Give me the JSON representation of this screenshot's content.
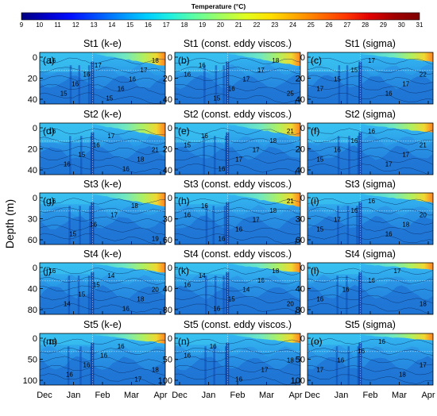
{
  "colorbar": {
    "title": "Temperature (°C)",
    "ticks": [
      "9",
      "10",
      "11",
      "12",
      "13",
      "14",
      "15",
      "16",
      "17",
      "18",
      "19",
      "20",
      "21",
      "22",
      "23",
      "24",
      "25",
      "26",
      "27",
      "28",
      "29",
      "30",
      "31"
    ],
    "colors": [
      "#00007f",
      "#0000c8",
      "#0010ff",
      "#0050ff",
      "#0090ff",
      "#00ccff",
      "#20f0e0",
      "#60ffa0",
      "#a0ff60",
      "#e0ff20",
      "#ffe000",
      "#ffa800",
      "#ff7000",
      "#ff3800",
      "#e00000",
      "#a00000",
      "#7f0000"
    ]
  },
  "y_axis_label": "Depth (m)",
  "months": [
    "Dec",
    "Jan",
    "Feb",
    "Mar",
    "Apr"
  ],
  "rows": [
    {
      "station": "St1",
      "ticks": [
        "0",
        "20",
        "40"
      ],
      "max_depth": 40
    },
    {
      "station": "St2",
      "ticks": [
        "0",
        "20",
        "40"
      ],
      "max_depth": 45
    },
    {
      "station": "St3",
      "ticks": [
        "0",
        "30",
        "60"
      ],
      "max_depth": 60
    },
    {
      "station": "St4",
      "ticks": [
        "0",
        "40",
        "80"
      ],
      "max_depth": 80
    },
    {
      "station": "St5",
      "ticks": [
        "0",
        "50",
        "100"
      ],
      "max_depth": 100
    }
  ],
  "panels": [
    {
      "title": "St1 (k-e)",
      "letter": "(a)",
      "contours": [
        "16",
        "15",
        "16",
        "16",
        "17",
        "15",
        "16",
        "16",
        "17",
        "18"
      ]
    },
    {
      "title": "St1 (const. eddy viscos.)",
      "letter": "(b)",
      "contours": [
        "16",
        "16",
        "15",
        "16",
        "17",
        "17",
        "18",
        "25"
      ]
    },
    {
      "title": "St1 (sigma)",
      "letter": "(c)",
      "contours": [
        "17",
        "15",
        "15",
        "17",
        "16",
        "17",
        "22"
      ]
    },
    {
      "title": "St2 (k-e)",
      "letter": "(d)",
      "contours": [
        "16",
        "16",
        "15",
        "16",
        "17",
        "16",
        "18",
        "21"
      ]
    },
    {
      "title": "St2 (const. eddy viscos.)",
      "letter": "(e)",
      "contours": [
        "15",
        "16",
        "16",
        "17",
        "17",
        "18",
        "21"
      ]
    },
    {
      "title": "St2 (sigma)",
      "letter": "(f)",
      "contours": [
        "15",
        "16",
        "16",
        "16",
        "17",
        "17",
        "21"
      ]
    },
    {
      "title": "St3 (k-e)",
      "letter": "(g)",
      "contours": [
        "16",
        "15",
        "16",
        "17",
        "18",
        "19"
      ]
    },
    {
      "title": "St3 (const. eddy viscos.)",
      "letter": "(h)",
      "contours": [
        "16",
        "16",
        "16",
        "16",
        "17",
        "18",
        "21"
      ]
    },
    {
      "title": "St3 (sigma)",
      "letter": "(i)",
      "contours": [
        "15",
        "17",
        "16",
        "16",
        "16",
        "18",
        "20"
      ]
    },
    {
      "title": "St4 (k-e)",
      "letter": "(j)",
      "contours": [
        "16",
        "14",
        "15",
        "15",
        "14",
        "16",
        "18",
        "20"
      ]
    },
    {
      "title": "St4 (const. eddy viscos.)",
      "letter": "(k)",
      "contours": [
        "16",
        "14",
        "16",
        "15",
        "14",
        "16",
        "18",
        "20"
      ]
    },
    {
      "title": "St4 (sigma)",
      "letter": "(l)",
      "contours": [
        "16",
        "16",
        "16",
        "17",
        "18"
      ]
    },
    {
      "title": "St5 (k-e)",
      "letter": "(m)",
      "contours": [
        "16",
        "16",
        "16",
        "16",
        "16",
        "17",
        "18"
      ]
    },
    {
      "title": "St5 (const. eddy viscos.)",
      "letter": "(n)",
      "contours": [
        "16",
        "16",
        "16",
        "17",
        "18"
      ]
    },
    {
      "title": "St5 (sigma)",
      "letter": "(o)",
      "contours": [
        "17",
        "16",
        "16",
        "16",
        "18",
        "17"
      ]
    }
  ],
  "chart_data": {
    "type": "heatmap",
    "x_categories": [
      "Dec",
      "Jan",
      "Feb",
      "Mar",
      "Apr"
    ],
    "colorbar_range": [
      9,
      31
    ],
    "colorbar_unit": "°C",
    "ylabel": "Depth (m)",
    "panels": [
      {
        "id": "a",
        "station": "St1",
        "model": "k-e",
        "ylim": [
          40,
          0
        ],
        "surface_temp_range": [
          15,
          18
        ]
      },
      {
        "id": "b",
        "station": "St1",
        "model": "const. eddy viscos.",
        "ylim": [
          40,
          0
        ],
        "surface_temp_range": [
          15,
          25
        ]
      },
      {
        "id": "c",
        "station": "St1",
        "model": "sigma",
        "ylim": [
          40,
          0
        ],
        "surface_temp_range": [
          15,
          22
        ]
      },
      {
        "id": "d",
        "station": "St2",
        "model": "k-e",
        "ylim": [
          45,
          0
        ],
        "surface_temp_range": [
          15,
          21
        ]
      },
      {
        "id": "e",
        "station": "St2",
        "model": "const. eddy viscos.",
        "ylim": [
          45,
          0
        ],
        "surface_temp_range": [
          15,
          21
        ]
      },
      {
        "id": "f",
        "station": "St2",
        "model": "sigma",
        "ylim": [
          45,
          0
        ],
        "surface_temp_range": [
          15,
          21
        ]
      },
      {
        "id": "g",
        "station": "St3",
        "model": "k-e",
        "ylim": [
          60,
          0
        ],
        "surface_temp_range": [
          15,
          19
        ]
      },
      {
        "id": "h",
        "station": "St3",
        "model": "const. eddy viscos.",
        "ylim": [
          60,
          0
        ],
        "surface_temp_range": [
          16,
          21
        ]
      },
      {
        "id": "i",
        "station": "St3",
        "model": "sigma",
        "ylim": [
          60,
          0
        ],
        "surface_temp_range": [
          15,
          20
        ]
      },
      {
        "id": "j",
        "station": "St4",
        "model": "k-e",
        "ylim": [
          80,
          0
        ],
        "surface_temp_range": [
          14,
          20
        ]
      },
      {
        "id": "k",
        "station": "St4",
        "model": "const. eddy viscos.",
        "ylim": [
          80,
          0
        ],
        "surface_temp_range": [
          14,
          20
        ]
      },
      {
        "id": "l",
        "station": "St4",
        "model": "sigma",
        "ylim": [
          80,
          0
        ],
        "surface_temp_range": [
          16,
          18
        ]
      },
      {
        "id": "m",
        "station": "St5",
        "model": "k-e",
        "ylim": [
          100,
          0
        ],
        "surface_temp_range": [
          16,
          18
        ]
      },
      {
        "id": "n",
        "station": "St5",
        "model": "const. eddy viscos.",
        "ylim": [
          100,
          0
        ],
        "surface_temp_range": [
          16,
          18
        ]
      },
      {
        "id": "o",
        "station": "St5",
        "model": "sigma",
        "ylim": [
          100,
          0
        ],
        "surface_temp_range": [
          16,
          18
        ]
      }
    ]
  }
}
